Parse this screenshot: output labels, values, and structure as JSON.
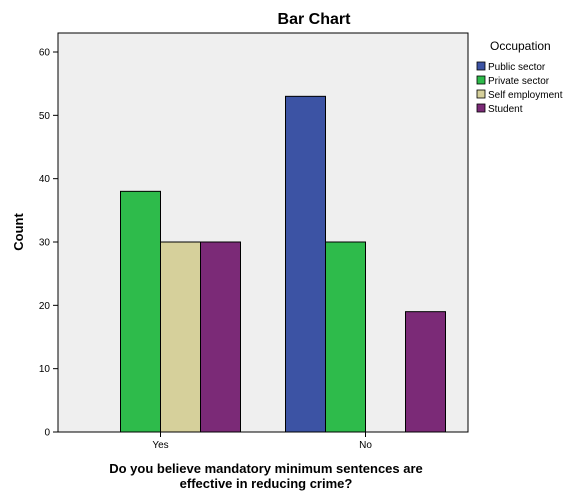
{
  "chart_data": {
    "type": "bar",
    "title": "Bar Chart",
    "ylabel": "Count",
    "xlabel_lines": [
      "Do you believe mandatory minimum sentences are",
      "effective in reducing crime?"
    ],
    "categories": [
      "Yes",
      "No"
    ],
    "ylim": [
      0,
      63
    ],
    "yticks": [
      0,
      10,
      20,
      30,
      40,
      50,
      60
    ],
    "legend": {
      "title": "Occupation",
      "placement": "top-right"
    },
    "series": [
      {
        "name": "Public sector",
        "color": "#3c53a4",
        "values": [
          0,
          53
        ]
      },
      {
        "name": "Private sector",
        "color": "#2ebb4b",
        "values": [
          38,
          30
        ]
      },
      {
        "name": "Self employment",
        "color": "#d6d09b",
        "values": [
          30,
          0
        ]
      },
      {
        "name": "Student",
        "color": "#7b2a77",
        "values": [
          30,
          19
        ]
      }
    ],
    "plot_background": "#efefef",
    "grid": false
  }
}
